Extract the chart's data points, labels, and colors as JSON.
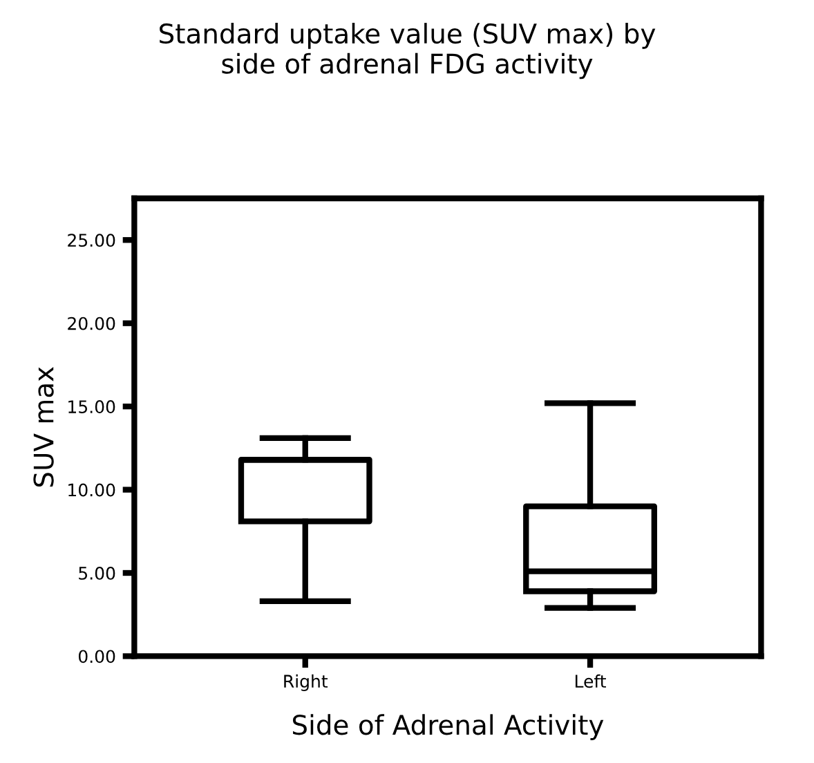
{
  "chart_data": {
    "type": "box",
    "title": "Standard uptake value (SUV max) by\nside of adrenal FDG activity",
    "xlabel": "Side of Adrenal Activity",
    "ylabel": "SUV max",
    "categories": [
      "Right",
      "Left"
    ],
    "boxes": [
      {
        "low": 3.3,
        "q1": 8.1,
        "median": 11.8,
        "q3": 11.8,
        "high": 13.1
      },
      {
        "low": 2.9,
        "q1": 3.9,
        "median": 5.1,
        "q3": 9.0,
        "high": 15.2
      }
    ],
    "color": "#000000",
    "ylim": [
      0,
      27.5
    ],
    "yticks": [
      {
        "value": 0,
        "label": "0.00"
      },
      {
        "value": 5,
        "label": "5.00"
      },
      {
        "value": 10,
        "label": "10.00"
      },
      {
        "value": 15,
        "label": "15.00"
      },
      {
        "value": 20,
        "label": "20.00"
      },
      {
        "value": 25,
        "label": "25.00"
      }
    ],
    "grid": false
  }
}
